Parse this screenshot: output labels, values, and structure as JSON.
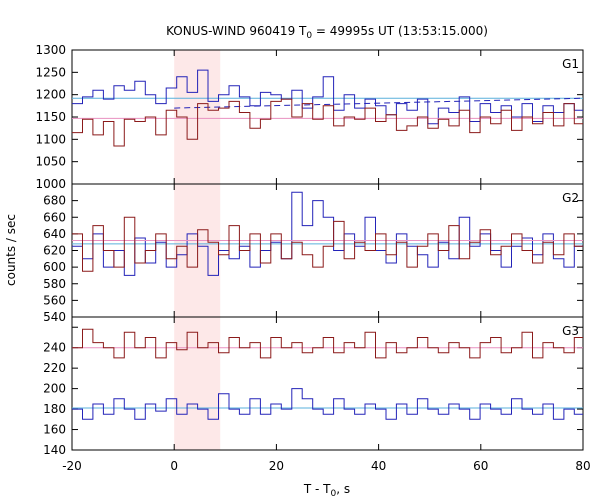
{
  "chart_data": {
    "type": "line",
    "title_main": "KONUS-WIND 960419 T",
    "title_sub": "0",
    "title_rest": " = 49995s UT (13:53:15.000)",
    "xlabel_main": "T - T",
    "xlabel_sub": "0",
    "xlabel_rest": ", s",
    "ylabel": "counts / sec",
    "xlim": [
      -20,
      80
    ],
    "x_ticks": [
      "-20",
      "0",
      "20",
      "40",
      "60",
      "80"
    ],
    "highlight": {
      "x_start": 0,
      "x_end": 9,
      "color": "#fde8e8"
    },
    "bin_width": 2.048,
    "x_start": -20,
    "colors": {
      "blue": "#2323b8",
      "red": "#8b1a1a",
      "blue_fit": "#5ab0dc",
      "red_fit": "#e890c0"
    },
    "panels": [
      {
        "label": "G1",
        "ylim": [
          1000,
          1300
        ],
        "y_ticks": [
          "1000",
          "1050",
          "1100",
          "1150",
          "1200",
          "1250",
          "1300"
        ],
        "series": [
          {
            "color": "blue",
            "values": [
              1180,
              1195,
              1210,
              1190,
              1220,
              1210,
              1230,
              1200,
              1180,
              1215,
              1240,
              1205,
              1255,
              1185,
              1200,
              1220,
              1195,
              1175,
              1205,
              1200,
              1190,
              1210,
              1170,
              1195,
              1240,
              1165,
              1200,
              1170,
              1190,
              1175,
              1155,
              1180,
              1165,
              1190,
              1135,
              1170,
              1160,
              1195,
              1140,
              1180,
              1160,
              1175,
              1150,
              1180,
              1140,
              1175,
              1160,
              1180,
              1165,
              1185
            ],
            "fit": 1192,
            "fit_color": "blue_fit",
            "fit_dashed": [
              1170,
              1192,
              "#2323b8"
            ]
          },
          {
            "color": "red",
            "values": [
              1115,
              1145,
              1110,
              1140,
              1085,
              1145,
              1140,
              1150,
              1110,
              1165,
              1150,
              1100,
              1180,
              1165,
              1170,
              1185,
              1160,
              1125,
              1145,
              1185,
              1190,
              1150,
              1180,
              1145,
              1175,
              1130,
              1150,
              1145,
              1170,
              1140,
              1155,
              1120,
              1130,
              1150,
              1125,
              1145,
              1130,
              1165,
              1115,
              1150,
              1135,
              1165,
              1120,
              1150,
              1135,
              1160,
              1130,
              1180,
              1135,
              1155
            ],
            "fit": 1147,
            "fit_color": "red_fit"
          }
        ]
      },
      {
        "label": "G2",
        "ylim": [
          540,
          700
        ],
        "y_ticks": [
          "540",
          "560",
          "580",
          "600",
          "620",
          "640",
          "660",
          "680",
          "700"
        ],
        "series": [
          {
            "color": "blue",
            "values": [
              625,
              610,
              640,
              600,
              620,
              590,
              635,
              605,
              630,
              600,
              615,
              640,
              625,
              590,
              620,
              610,
              625,
              600,
              620,
              630,
              610,
              690,
              650,
              680,
              660,
              620,
              640,
              625,
              660,
              620,
              605,
              640,
              625,
              615,
              600,
              630,
              610,
              660,
              625,
              640,
              620,
              600,
              625,
              635,
              615,
              640,
              610,
              600,
              625,
              615
            ],
            "fit": 628,
            "fit_color": "blue_fit"
          },
          {
            "color": "red",
            "values": [
              640,
              595,
              650,
              620,
              600,
              660,
              605,
              620,
              640,
              610,
              625,
              600,
              645,
              630,
              615,
              650,
              620,
              640,
              605,
              640,
              610,
              630,
              615,
              600,
              625,
              655,
              610,
              630,
              620,
              640,
              615,
              630,
              600,
              625,
              640,
              620,
              650,
              610,
              630,
              645,
              615,
              625,
              640,
              620,
              605,
              630,
              615,
              640,
              625,
              610
            ],
            "fit": 632,
            "fit_color": "red_fit"
          }
        ]
      },
      {
        "label": "G3",
        "ylim": [
          140,
          270
        ],
        "y_ticks": [
          "140",
          "160",
          "180",
          "200",
          "220",
          "240",
          "260"
        ],
        "series": [
          {
            "color": "red",
            "values": [
              240,
              258,
              245,
              240,
              230,
              255,
              240,
              250,
              230,
              245,
              238,
              255,
              240,
              245,
              235,
              250,
              240,
              245,
              230,
              250,
              240,
              245,
              235,
              240,
              250,
              235,
              245,
              240,
              255,
              230,
              245,
              235,
              240,
              250,
              240,
              235,
              245,
              240,
              230,
              245,
              250,
              235,
              240,
              255,
              230,
              245,
              240,
              235,
              250,
              240
            ],
            "fit": 240,
            "fit_color": "red_fit"
          },
          {
            "color": "blue",
            "values": [
              180,
              170,
              185,
              175,
              190,
              180,
              170,
              185,
              178,
              190,
              175,
              185,
              180,
              170,
              195,
              180,
              175,
              190,
              175,
              185,
              180,
              200,
              190,
              180,
              175,
              190,
              180,
              175,
              185,
              180,
              170,
              185,
              175,
              190,
              180,
              175,
              185,
              180,
              170,
              185,
              180,
              175,
              190,
              180,
              175,
              185,
              170,
              180,
              175,
              185
            ],
            "fit": 181,
            "fit_color": "blue_fit"
          }
        ]
      }
    ]
  }
}
